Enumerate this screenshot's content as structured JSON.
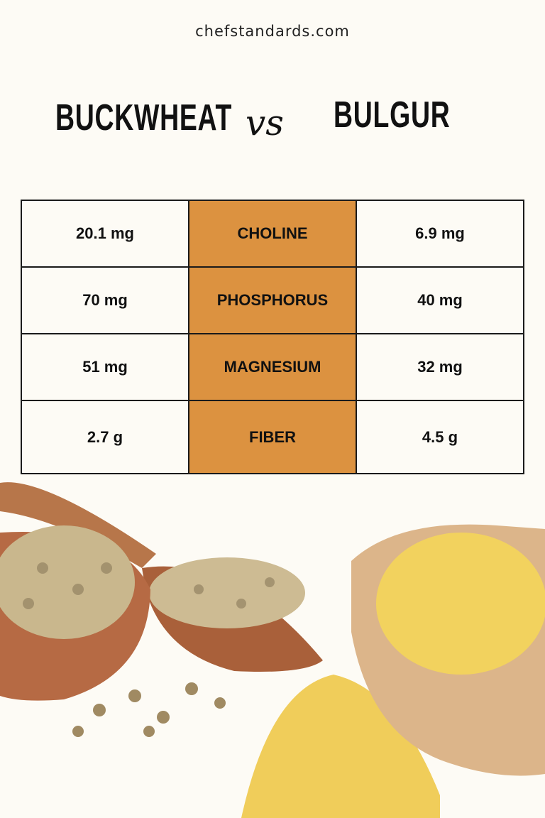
{
  "site": "chefstandards.com",
  "header": {
    "left": "BUCKWHEAT",
    "vs": "vs",
    "right": "BULGUR"
  },
  "colors": {
    "background": "#fdfbf5",
    "nutrient_column": "#dc9240",
    "border": "#1a1a1a"
  },
  "table": {
    "rows": [
      {
        "buckwheat": "20.1 mg",
        "nutrient": "CHOLINE",
        "bulgur": "6.9 mg"
      },
      {
        "buckwheat": "70 mg",
        "nutrient": "PHOSPHORUS",
        "bulgur": "40 mg"
      },
      {
        "buckwheat": "51 mg",
        "nutrient": "MAGNESIUM",
        "bulgur": "32 mg"
      },
      {
        "buckwheat": "2.7 g",
        "nutrient": "FIBER",
        "bulgur": "4.5 g"
      }
    ]
  },
  "images": [
    "buckwheat-in-wooden-bowl-and-spoon",
    "bulgur-in-wooden-bowl"
  ]
}
